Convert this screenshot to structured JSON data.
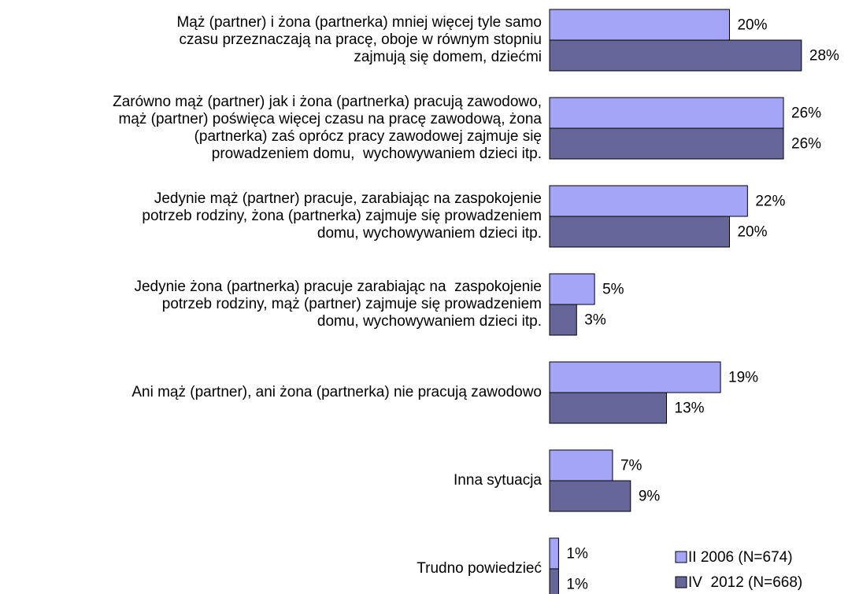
{
  "chart_data": {
    "type": "bar",
    "orientation": "horizontal",
    "categories": [
      "Mąż (partner) i żona (partnerka) mniej więcej tyle samo\nczasu przeznaczają na pracę, oboje w równym stopniu\nzajmują się domem, dziećmi",
      "Zarówno mąż (partner) jak i żona (partnerka) pracują zawodowo,\nmąż (partner) poświęca więcej czasu na pracę zawodową, żona\n(partnerka) zaś oprócz pracy zawodowej zajmuje się\nprowadzeniem domu,  wychowywaniem dzieci itp.",
      "Jedynie mąż (partner) pracuje, zarabiając na zaspokojenie\npotrzeb rodziny, żona (partnerka) zajmuje się prowadzeniem\ndomu, wychowywaniem dzieci itp.",
      "Jedynie żona (partnerka) pracuje zarabiając na  zaspokojenie\npotrzeb rodziny, mąż (partner) zajmuje się prowadzeniem\ndomu, wychowywaniem dzieci itp.",
      "Ani mąż (partner), ani żona (partnerka) nie pracują zawodowo",
      "Inna sytuacja",
      "Trudno powiedzieć"
    ],
    "series": [
      {
        "name": "II 2006 (N=674)",
        "color": "#a5a5f7",
        "values": [
          20,
          26,
          22,
          5,
          19,
          7,
          1
        ],
        "value_labels": [
          "20%",
          "26%",
          "22%",
          "5%",
          "19%",
          "7%",
          "1%"
        ]
      },
      {
        "name": "IV  2012 (N=668)",
        "color": "#66669a",
        "values": [
          28,
          26,
          20,
          3,
          13,
          9,
          1
        ],
        "value_labels": [
          "28%",
          "26%",
          "20%",
          "3%",
          "13%",
          "9%",
          "1%"
        ]
      }
    ],
    "xlim": [
      0,
      33
    ],
    "legend": "lower right"
  }
}
